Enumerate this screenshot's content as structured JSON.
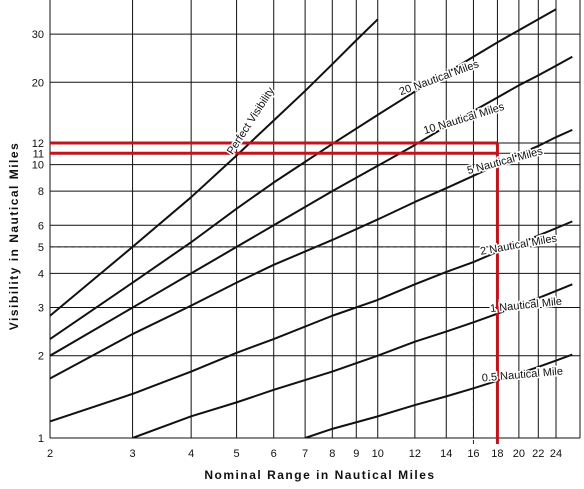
{
  "chart_data": {
    "type": "line",
    "title": "",
    "xlabel": "Nominal Range in Nautical Miles",
    "ylabel": "Visibility in Nautical Miles",
    "x_scale": "log",
    "y_scale": "log",
    "xlim": [
      2,
      27
    ],
    "ylim": [
      1,
      40
    ],
    "x_ticks": [
      2,
      3,
      4,
      5,
      6,
      7,
      8,
      9,
      10,
      12,
      14,
      16,
      18,
      20,
      22,
      24
    ],
    "y_ticks": [
      1,
      2,
      3,
      4,
      5,
      6,
      8,
      10,
      11,
      12,
      20,
      30
    ],
    "grid": true,
    "legend": "none (series labeled along curves)",
    "series": [
      {
        "name": "Perfect Visibility",
        "x": [
          2,
          3,
          4,
          5,
          6,
          7,
          8,
          9,
          10
        ],
        "y": [
          2.8,
          5.0,
          7.6,
          10.8,
          14.5,
          18.6,
          23.3,
          28.5,
          34
        ]
      },
      {
        "name": "20 Nautical Miles",
        "x": [
          2,
          3,
          4,
          5,
          6,
          8,
          10,
          12,
          14,
          16,
          18,
          20,
          22,
          24
        ],
        "y": [
          2.3,
          3.7,
          5.2,
          6.9,
          8.6,
          11.9,
          15.2,
          18.5,
          21.6,
          24.8,
          28.0,
          31.0,
          34.0,
          37.0
        ]
      },
      {
        "name": "10 Nautical Miles",
        "x": [
          2,
          3,
          4,
          5,
          6,
          8,
          10,
          12,
          14,
          16,
          18,
          20,
          22,
          24,
          26
        ],
        "y": [
          2.0,
          3.0,
          4.0,
          5.0,
          6.0,
          8.0,
          9.9,
          11.8,
          13.8,
          15.7,
          17.6,
          19.5,
          21.2,
          23.0,
          24.8
        ]
      },
      {
        "name": "5 Nautical Miles",
        "x": [
          2,
          3,
          4,
          5,
          6,
          8,
          10,
          12,
          14,
          16,
          18,
          20,
          22,
          24,
          26
        ],
        "y": [
          1.65,
          2.4,
          3.05,
          3.7,
          4.3,
          5.3,
          6.3,
          7.3,
          8.2,
          9.1,
          10.0,
          10.9,
          11.7,
          12.6,
          13.4
        ]
      },
      {
        "name": "2 Nautical Miles",
        "x": [
          2,
          3,
          4,
          5,
          6,
          8,
          10,
          12,
          14,
          16,
          18,
          20,
          22,
          24,
          26
        ],
        "y": [
          1.15,
          1.45,
          1.75,
          2.05,
          2.3,
          2.8,
          3.2,
          3.65,
          4.05,
          4.4,
          4.8,
          5.15,
          5.5,
          5.85,
          6.2
        ]
      },
      {
        "name": "1 Nautical Mile",
        "x": [
          3,
          4,
          5,
          6,
          8,
          10,
          12,
          14,
          16,
          18,
          20,
          22,
          24,
          26
        ],
        "y": [
          1.0,
          1.2,
          1.35,
          1.5,
          1.75,
          2.0,
          2.25,
          2.45,
          2.65,
          2.85,
          3.05,
          3.25,
          3.45,
          3.65
        ]
      },
      {
        "name": "0.5 Nautical Mile",
        "x": [
          7,
          8,
          10,
          12,
          14,
          16,
          18,
          20,
          22,
          24,
          26
        ],
        "y": [
          1.0,
          1.08,
          1.2,
          1.32,
          1.42,
          1.52,
          1.62,
          1.72,
          1.82,
          1.92,
          2.02
        ]
      }
    ],
    "annotations": {
      "red_guides": [
        {
          "kind": "horizontal",
          "y": 12,
          "x_from": 2,
          "x_to": 18
        },
        {
          "kind": "horizontal",
          "y": 11,
          "x_from": 2,
          "x_to": 18
        },
        {
          "kind": "vertical",
          "x": 18,
          "y_from": 0.82,
          "y_to": 12
        }
      ],
      "dashed_guides": [
        {
          "kind": "horizontal",
          "y": 5,
          "x_from": 2,
          "x_to": 16
        },
        {
          "kind": "vertical",
          "x": 16,
          "y_from": 0.82,
          "y_to": 5
        }
      ],
      "colors": {
        "curve": "#111111",
        "grid": "#111111",
        "red_guide": "#c0141c",
        "dashed_guide": "#222222"
      }
    }
  }
}
